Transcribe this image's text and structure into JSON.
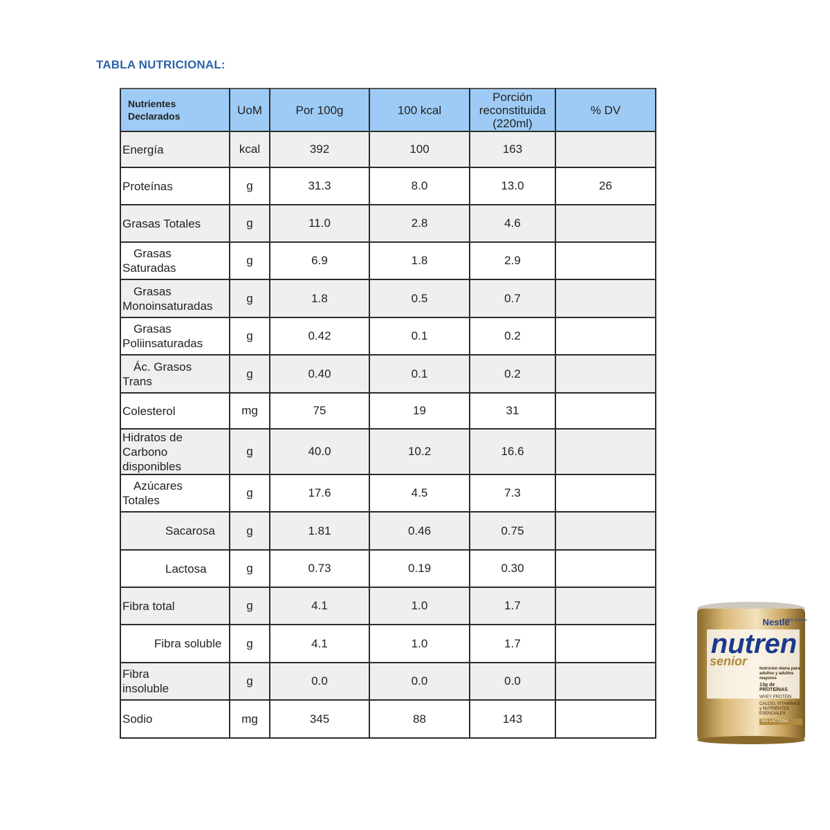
{
  "header": {
    "title": "TABLA NUTRICIONAL:"
  },
  "table": {
    "columns": [
      "Nutrientes Declarados",
      "UoM",
      "Por 100g",
      "100 kcal",
      "Porción reconstituida (220ml)",
      "% DV"
    ],
    "rows": [
      [
        "Energía",
        "kcal",
        "392",
        "100",
        "163",
        null
      ],
      [
        "Proteínas",
        "g",
        "31.3",
        "8.0",
        "13.0",
        "26"
      ],
      [
        "Grasas Totales",
        "g",
        "11.0",
        "2.8",
        "4.6",
        null
      ],
      [
        "Grasas\nSaturadas",
        "g",
        "6.9",
        "1.8",
        "2.9",
        null
      ],
      [
        "Grasas\nMonoinsaturadas",
        "g",
        "1.8",
        "0.5",
        "0.7",
        null
      ],
      [
        "Grasas\nPoliinsaturadas",
        "g",
        "0.42",
        "0.1",
        "0.2",
        null
      ],
      [
        "Ác. Grasos\nTrans",
        "g",
        "0.40",
        "0.1",
        "0.2",
        null
      ],
      [
        "Colesterol",
        "mg",
        "75",
        "19",
        "31",
        null
      ],
      [
        "Hidratos de\nCarbono\ndisponibles",
        "g",
        "40.0",
        "10.2",
        "16.6",
        null
      ],
      [
        "Azúcares\nTotales",
        "g",
        "17.6",
        "4.5",
        "7.3",
        null
      ],
      [
        "Sacarosa",
        "g",
        "1.81",
        "0.46",
        "0.75",
        null
      ],
      [
        "Lactosa",
        "g",
        "0.73",
        "0.19",
        "0.30",
        null
      ],
      [
        "Fibra total",
        "g",
        "4.1",
        "1.0",
        "1.7",
        null
      ],
      [
        "Fibra soluble",
        "g",
        "4.1",
        "1.0",
        "1.7",
        null
      ],
      [
        "Fibra\ninsoluble",
        "g",
        "0.0",
        "0.0",
        "0.0",
        null
      ],
      [
        "Sodio",
        "mg",
        "345",
        "88",
        "143",
        null
      ]
    ]
  },
  "product": {
    "brand": "Nestlé",
    "division": "Health Science",
    "name": "nutren",
    "line": "senior",
    "claim": "Nutrición diaria para adultos y adultos mayores",
    "protein": "13g de PROTEÍNAS",
    "badge1": "WHEY PROTEIN",
    "badge2": "CALCIO, VITAMINA D y NUTRIENTES ESENCIALES",
    "badge3": "SIN LACTOSA"
  }
}
